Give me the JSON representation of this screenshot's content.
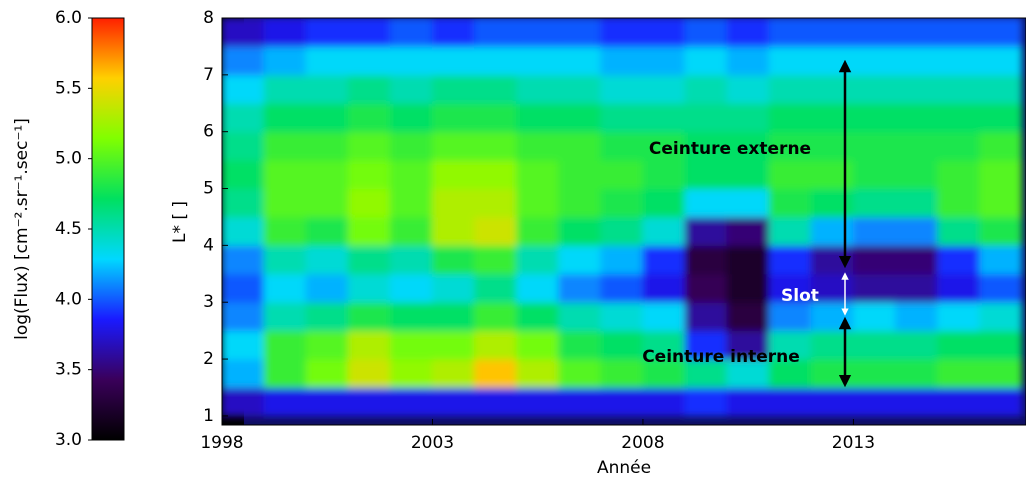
{
  "chart_data": {
    "type": "heatmap",
    "xlabel": "Année",
    "ylabel": "L* [ ]",
    "colorbar_label": "log(Flux) [cm⁻².sr⁻¹.sec⁻¹]",
    "xlim": [
      1998,
      2017.1
    ],
    "ylim": [
      0.84,
      8
    ],
    "xticks": [
      1998,
      2003,
      2008,
      2013
    ],
    "yticks": [
      1,
      2,
      3,
      4,
      5,
      6,
      7,
      8
    ],
    "clim": [
      3,
      6
    ],
    "cticks": [
      {
        "value": 3,
        "label": "3.0"
      },
      {
        "value": 3.5,
        "label": "3.5"
      },
      {
        "value": 4,
        "label": "4.0"
      },
      {
        "value": 4.5,
        "label": "4.5"
      },
      {
        "value": 5,
        "label": "5.0"
      },
      {
        "value": 5.5,
        "label": "5.5"
      },
      {
        "value": 6,
        "label": "6.0"
      }
    ],
    "colormap": [
      "#000000",
      "#3a005a",
      "#1a1aff",
      "#00d8ff",
      "#00e060",
      "#80ff00",
      "#ffd000",
      "#ff2000"
    ],
    "xbins": [
      1998,
      1999,
      2000,
      2001,
      2002,
      2003,
      2004,
      2005,
      2006,
      2007,
      2008,
      2009,
      2010,
      2011,
      2012,
      2013,
      2014,
      2015,
      2016,
      2017
    ],
    "ybins": [
      1,
      1.5,
      2,
      2.5,
      3,
      3.5,
      4,
      4.5,
      5,
      5.5,
      6,
      6.5,
      7,
      7.5,
      8
    ],
    "z": [
      [
        3.7,
        3.8,
        3.8,
        3.8,
        3.8,
        3.8,
        3.8,
        3.8,
        3.8,
        3.8,
        3.8,
        3.9,
        3.8,
        3.8,
        3.8,
        3.8,
        3.8,
        3.8,
        3.8
      ],
      [
        4.2,
        4.9,
        5.1,
        5.4,
        5.2,
        5.3,
        5.6,
        5.3,
        5.0,
        4.9,
        4.8,
        4.6,
        4.4,
        4.7,
        4.8,
        4.8,
        4.8,
        4.9,
        4.9
      ],
      [
        4.3,
        4.9,
        5.0,
        5.3,
        5.1,
        5.1,
        5.3,
        5.1,
        4.8,
        4.7,
        4.6,
        3.9,
        3.6,
        4.5,
        4.6,
        4.6,
        4.6,
        4.7,
        4.7
      ],
      [
        4.1,
        4.5,
        4.6,
        4.8,
        4.7,
        4.7,
        4.9,
        4.7,
        4.5,
        4.4,
        4.3,
        3.6,
        3.3,
        4.1,
        4.2,
        4.3,
        4.2,
        4.3,
        4.4
      ],
      [
        4.0,
        4.3,
        4.2,
        4.4,
        4.3,
        4.4,
        4.6,
        4.3,
        4.1,
        4.0,
        3.8,
        3.4,
        3.2,
        3.8,
        3.7,
        3.6,
        3.6,
        3.8,
        4.0
      ],
      [
        4.1,
        4.5,
        4.4,
        4.6,
        4.5,
        4.8,
        4.9,
        4.5,
        4.3,
        4.2,
        3.9,
        3.3,
        3.2,
        3.9,
        3.6,
        3.5,
        3.5,
        3.9,
        4.2
      ],
      [
        4.4,
        4.9,
        4.8,
        5.1,
        4.9,
        5.3,
        5.4,
        4.9,
        4.7,
        4.6,
        4.4,
        3.6,
        3.5,
        4.5,
        4.2,
        4.1,
        4.1,
        4.6,
        4.8
      ],
      [
        4.6,
        5.0,
        5.0,
        5.2,
        5.0,
        5.3,
        5.3,
        5.0,
        4.9,
        4.8,
        4.7,
        4.3,
        4.3,
        4.8,
        4.7,
        4.6,
        4.6,
        4.9,
        5.0
      ],
      [
        4.7,
        5.0,
        5.0,
        5.1,
        5.0,
        5.2,
        5.2,
        5.0,
        4.9,
        4.9,
        4.8,
        4.7,
        4.7,
        4.9,
        4.9,
        4.8,
        4.8,
        4.9,
        5.0
      ],
      [
        4.6,
        4.9,
        4.9,
        5.0,
        4.9,
        5.0,
        5.0,
        4.9,
        4.9,
        4.8,
        4.8,
        4.7,
        4.7,
        4.8,
        4.8,
        4.8,
        4.8,
        4.8,
        4.9
      ],
      [
        4.5,
        4.7,
        4.7,
        4.8,
        4.7,
        4.8,
        4.8,
        4.7,
        4.7,
        4.6,
        4.6,
        4.6,
        4.6,
        4.7,
        4.7,
        4.7,
        4.7,
        4.7,
        4.7
      ],
      [
        4.3,
        4.5,
        4.5,
        4.6,
        4.5,
        4.6,
        4.6,
        4.5,
        4.5,
        4.4,
        4.4,
        4.5,
        4.4,
        4.5,
        4.5,
        4.5,
        4.5,
        4.5,
        4.5
      ],
      [
        4.1,
        4.2,
        4.3,
        4.3,
        4.3,
        4.3,
        4.3,
        4.3,
        4.3,
        4.2,
        4.2,
        4.3,
        4.2,
        4.3,
        4.3,
        4.3,
        4.3,
        4.3,
        4.3
      ],
      [
        3.7,
        3.8,
        3.9,
        3.9,
        4.0,
        3.9,
        4.0,
        4.0,
        4.0,
        3.9,
        3.9,
        4.0,
        3.9,
        4.0,
        4.0,
        4.0,
        4.0,
        4.0,
        4.0
      ]
    ],
    "annotations": [
      "Ceinture externe",
      "Slot",
      "Ceinture interne"
    ]
  }
}
